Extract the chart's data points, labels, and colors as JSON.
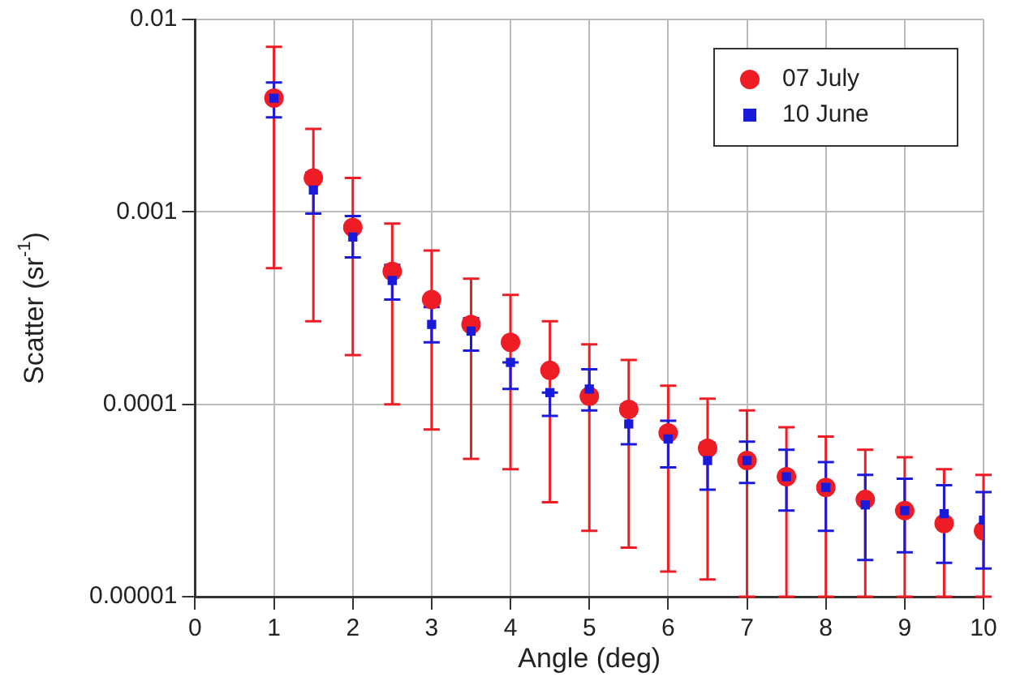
{
  "chart_data": {
    "type": "scatter",
    "xlabel": "Angle (deg)",
    "ylabel": "Scatter (sr$^{-1}$)",
    "log": "y",
    "grid": true,
    "legend": "top right",
    "xlim": [
      0,
      10
    ],
    "xticks": [
      0,
      1,
      2,
      3,
      4,
      5,
      6,
      7,
      8,
      9,
      10
    ],
    "ylim": [
      1e-05,
      0.01
    ],
    "yticks": [
      {
        "value": 1e-05,
        "label": "0.00001"
      },
      0.0001,
      0.001,
      0.01
    ],
    "x": [
      1,
      1.5,
      2,
      2.5,
      3,
      3.5,
      4,
      4.5,
      5,
      5.5,
      6,
      6.5,
      7,
      7.5,
      8,
      8.5,
      9,
      9.5,
      10
    ],
    "series": [
      {
        "name": "07 July",
        "color": "#ee1c25",
        "marker": "circle",
        "values": [
          0.0039,
          0.0015,
          0.00083,
          0.00049,
          0.00035,
          0.00026,
          0.00021,
          0.00015,
          0.00011,
          9.4e-05,
          7.1e-05,
          5.9e-05,
          5.1e-05,
          4.2e-05,
          3.7e-05,
          3.2e-05,
          2.8e-05,
          2.4e-05,
          2.2e-05
        ],
        "errors": [
          [
            0.00051,
            0.0072
          ],
          [
            0.00027,
            0.0027
          ],
          [
            0.00018,
            0.0015
          ],
          [
            0.0001,
            0.00087
          ],
          [
            7.4e-05,
            0.00063
          ],
          [
            5.2e-05,
            0.00045
          ],
          [
            4.6e-05,
            0.00037
          ],
          [
            3.1e-05,
            0.00027
          ],
          [
            2.2e-05,
            0.000205
          ],
          [
            1.8e-05,
            0.00017
          ],
          [
            1.35e-05,
            0.000125
          ],
          [
            1.23e-05,
            0.000107
          ],
          [
            1e-05,
            9.3e-05
          ],
          [
            1e-05,
            7.6e-05
          ],
          [
            1e-05,
            6.8e-05
          ],
          [
            1e-05,
            5.8e-05
          ],
          [
            1e-05,
            5.3e-05
          ],
          [
            1e-05,
            4.6e-05
          ],
          [
            1e-05,
            4.3e-05
          ]
        ]
      },
      {
        "name": "10 June",
        "color": "#1a1adb",
        "marker": "square",
        "values": [
          0.0039,
          0.0013,
          0.00074,
          0.00044,
          0.00026,
          0.00024,
          0.000165,
          0.000115,
          0.00012,
          7.9e-05,
          6.6e-05,
          5.1e-05,
          5.1e-05,
          4.2e-05,
          3.7e-05,
          3e-05,
          2.8e-05,
          2.7e-05,
          2.5e-05
        ],
        "errors": [
          [
            0.0031,
            0.0047
          ],
          [
            0.00098,
            0.0016
          ],
          [
            0.00058,
            0.00095
          ],
          [
            0.00035,
            0.00053
          ],
          [
            0.00021,
            0.00032
          ],
          [
            0.00019,
            0.00028
          ],
          [
            0.00012,
            0.000165
          ],
          [
            8.7e-05,
            0.000115
          ],
          [
            9.3e-05,
            0.000152
          ],
          [
            6.2e-05,
            0.0001
          ],
          [
            4.7e-05,
            8.2e-05
          ],
          [
            3.6e-05,
            6.3e-05
          ],
          [
            3.9e-05,
            6.4e-05
          ],
          [
            2.8e-05,
            5.8e-05
          ],
          [
            2.2e-05,
            5e-05
          ],
          [
            1.55e-05,
            4.3e-05
          ],
          [
            1.7e-05,
            4.1e-05
          ],
          [
            1.5e-05,
            3.8e-05
          ],
          [
            1.4e-05,
            3.5e-05
          ]
        ]
      }
    ]
  }
}
